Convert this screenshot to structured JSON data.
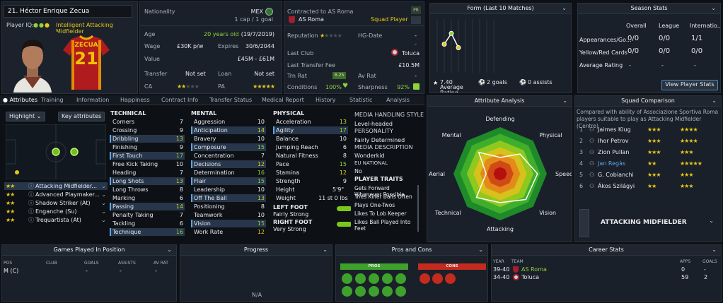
{
  "player": {
    "number_name": "21. Héctor Enrique Zecua",
    "player_iq_label": "Player IQ:",
    "role_desc": "Intelligent Attacking Midfielder",
    "shirt_name": "ZECUA",
    "shirt_number": "21"
  },
  "info": {
    "nationality_label": "Nationality",
    "nationality_value": "MEX",
    "caps": "1 cap / 1 goal",
    "age_label": "Age",
    "age_value": "20 years old",
    "dob": "(19/7/2019)",
    "wage_label": "Wage",
    "wage_value": "£30K p/w",
    "expires_label": "Expires",
    "expires_value": "30/6/2044",
    "value_label": "Value",
    "value_value": "£45M - £61M",
    "transfer_label": "Transfer",
    "transfer_value": "Not set",
    "loan_label": "Loan",
    "loan_value": "Not set",
    "ca_label": "CA",
    "pa_label": "PA"
  },
  "contract": {
    "contracted_label": "Contracted to AS Roma",
    "club": "AS Roma",
    "squad_status": "Squad Player",
    "badge_pr": "PR",
    "reputation_label": "Reputation",
    "hg_label": "HG-Date",
    "hg_value": "-",
    "last_club_label": "Last Club",
    "last_club_value": "Toluca",
    "last_fee_label": "Last Transfer Fee",
    "last_fee_value": "£10.5M",
    "trn_rat_label": "Trn Rat",
    "trn_rat_value": "6.25",
    "av_rat_label": "Av Rat",
    "av_rat_value": "-",
    "conditions_label": "Conditions",
    "conditions_value": "100%",
    "sharpness_label": "Sharpness",
    "sharpness_value": "92%"
  },
  "form": {
    "title": "Form (Last 10 Matches)",
    "avg_value": "7.40",
    "avg_label": "Average Rating",
    "goals": "2 goals",
    "assists": "0 assists",
    "points": [
      7.2,
      8.4,
      6.8
    ]
  },
  "season": {
    "title": "Season Stats",
    "cols": [
      "Overall",
      "League",
      "Internatio..."
    ],
    "rows": [
      {
        "label": "Appearances/Go...",
        "vals": [
          "0/0",
          "0/0",
          "1/1"
        ]
      },
      {
        "label": "Yellow/Red Cards",
        "vals": [
          "0/0",
          "0/0",
          "0/0"
        ]
      },
      {
        "label": "Average Rating",
        "vals": [
          "-",
          "-",
          "-"
        ]
      }
    ],
    "button": "View Player Stats"
  },
  "tabs": [
    "Attributes",
    "Training",
    "Information",
    "Happiness",
    "Contract Info",
    "Transfer Status",
    "Medical Report",
    "History",
    "Statistic",
    "Analysis"
  ],
  "roles": {
    "highlight": "Highlight",
    "key_attributes": "Key attributes",
    "items": [
      {
        "name": "Attacking Midfielder...",
        "stars": "★★"
      },
      {
        "name": "Advanced Playmaker...",
        "stars": "★★"
      },
      {
        "name": "Shadow Striker (At)",
        "stars": "★★"
      },
      {
        "name": "Enganche (Su)",
        "stars": "★★"
      },
      {
        "name": "Trequartista (At)",
        "stars": "★★"
      }
    ]
  },
  "technical": {
    "title": "TECHNICAL",
    "attrs": [
      {
        "n": "Corners",
        "v": "7"
      },
      {
        "n": "Crossing",
        "v": "9"
      },
      {
        "n": "Dribbling",
        "v": "13"
      },
      {
        "n": "Finishing",
        "v": "9"
      },
      {
        "n": "First Touch",
        "v": "17"
      },
      {
        "n": "Free Kick Taking",
        "v": "10"
      },
      {
        "n": "Heading",
        "v": "7"
      },
      {
        "n": "Long Shots",
        "v": "13"
      },
      {
        "n": "Long Throws",
        "v": "8"
      },
      {
        "n": "Marking",
        "v": "6"
      },
      {
        "n": "Passing",
        "v": "14"
      },
      {
        "n": "Penalty Taking",
        "v": "7"
      },
      {
        "n": "Tackling",
        "v": "6"
      },
      {
        "n": "Technique",
        "v": "16"
      }
    ]
  },
  "mental": {
    "title": "MENTAL",
    "attrs": [
      {
        "n": "Aggression",
        "v": "10"
      },
      {
        "n": "Anticipation",
        "v": "14"
      },
      {
        "n": "Bravery",
        "v": "10"
      },
      {
        "n": "Composure",
        "v": "15"
      },
      {
        "n": "Concentration",
        "v": "7"
      },
      {
        "n": "Decisions",
        "v": "12"
      },
      {
        "n": "Determination",
        "v": "16"
      },
      {
        "n": "Flair",
        "v": "15"
      },
      {
        "n": "Leadership",
        "v": "10"
      },
      {
        "n": "Off The Ball",
        "v": "13"
      },
      {
        "n": "Positioning",
        "v": "8"
      },
      {
        "n": "Teamwork",
        "v": "10"
      },
      {
        "n": "Vision",
        "v": "15"
      },
      {
        "n": "Work Rate",
        "v": "12"
      }
    ]
  },
  "physical": {
    "title": "PHYSICAL",
    "attrs": [
      {
        "n": "Acceleration",
        "v": "13"
      },
      {
        "n": "Agility",
        "v": "17"
      },
      {
        "n": "Balance",
        "v": "10"
      },
      {
        "n": "Jumping Reach",
        "v": "6"
      },
      {
        "n": "Natural Fitness",
        "v": "8"
      },
      {
        "n": "Pace",
        "v": "15"
      },
      {
        "n": "Stamina",
        "v": "12"
      },
      {
        "n": "Strength",
        "v": "9"
      }
    ],
    "height_label": "Height",
    "height_value": "5'9\"",
    "weight_label": "Weight",
    "weight_value": "11 st 0 lbs",
    "left_foot_label": "LEFT FOOT",
    "left_foot_value": "Fairly Strong",
    "right_foot_label": "RIGHT FOOT",
    "right_foot_value": "Very Strong"
  },
  "media": {
    "title": "MEDIA HANDLING STYLE",
    "style": "Level-headed",
    "personality_label": "PERSONALITY",
    "personality": "Fairly Determined",
    "desc_label": "MEDIA DESCRIPTION",
    "desc": "Wonderkid",
    "eu_label": "EU NATIONAL",
    "eu": "No",
    "traits_label": "PLAYER TRAITS",
    "traits": [
      "Gets Forward Whenever Possible",
      "Tries Killer Balls Often",
      "Plays One-Twos",
      "Likes To Lob Keeper",
      "Likes Ball Played Into Feet"
    ]
  },
  "analysis": {
    "title": "Attribute Analysis",
    "labels": [
      "Defending",
      "Physical",
      "Speed",
      "Vision",
      "Attacking",
      "Technical",
      "Aerial",
      "Mental"
    ],
    "values": [
      0.35,
      0.6,
      0.8,
      0.78,
      0.62,
      0.72,
      0.3,
      0.65
    ]
  },
  "squad": {
    "title": "Squad Comparison",
    "desc": "Compared with ability of Associazione Sportiva Roma players suitable to play as Attacking Midfielder (Centre)",
    "items": [
      {
        "rank": "1",
        "name": "Jaimes Klug",
        "ca": "★★★",
        "pa": "★★★★"
      },
      {
        "rank": "2",
        "name": "Ihor Petrov",
        "ca": "★★★",
        "pa": "★★★★"
      },
      {
        "rank": "3",
        "name": "Zion Pullan",
        "ca": "★★★",
        "pa": "★★★"
      },
      {
        "rank": "4",
        "name": "Jan Regàs",
        "ca": "★★",
        "pa": "★★★★★"
      },
      {
        "rank": "5",
        "name": "G. Cobianchi",
        "ca": "★★★",
        "pa": "★★★"
      },
      {
        "rank": "6",
        "name": "Ákos Szilágyi",
        "ca": "★★",
        "pa": "★★★"
      }
    ],
    "position": "ATTACKING MIDFIELDER"
  },
  "games": {
    "title": "Games Played In Position",
    "cols": [
      "POS",
      "CLUB",
      "GOALS",
      "ASSISTS",
      "AV RAT"
    ],
    "rows": [
      {
        "pos": "M (C)",
        "club": "",
        "goals": "-",
        "assists": "-",
        "avrat": "-"
      }
    ]
  },
  "progress": {
    "title": "Progress",
    "na": "N/A"
  },
  "proscons": {
    "title": "Pros and Cons",
    "pros": "PROS",
    "cons": "CONS"
  },
  "career": {
    "title": "Career Stats",
    "cols": [
      "YEAR",
      "TEAM",
      "APPS",
      "GOALS"
    ],
    "rows": [
      {
        "year": "39-40",
        "team": "AS Roma",
        "apps": "0",
        "goals": "-"
      },
      {
        "year": "34-40",
        "team": "Toluca",
        "apps": "59",
        "goals": "2"
      }
    ]
  }
}
